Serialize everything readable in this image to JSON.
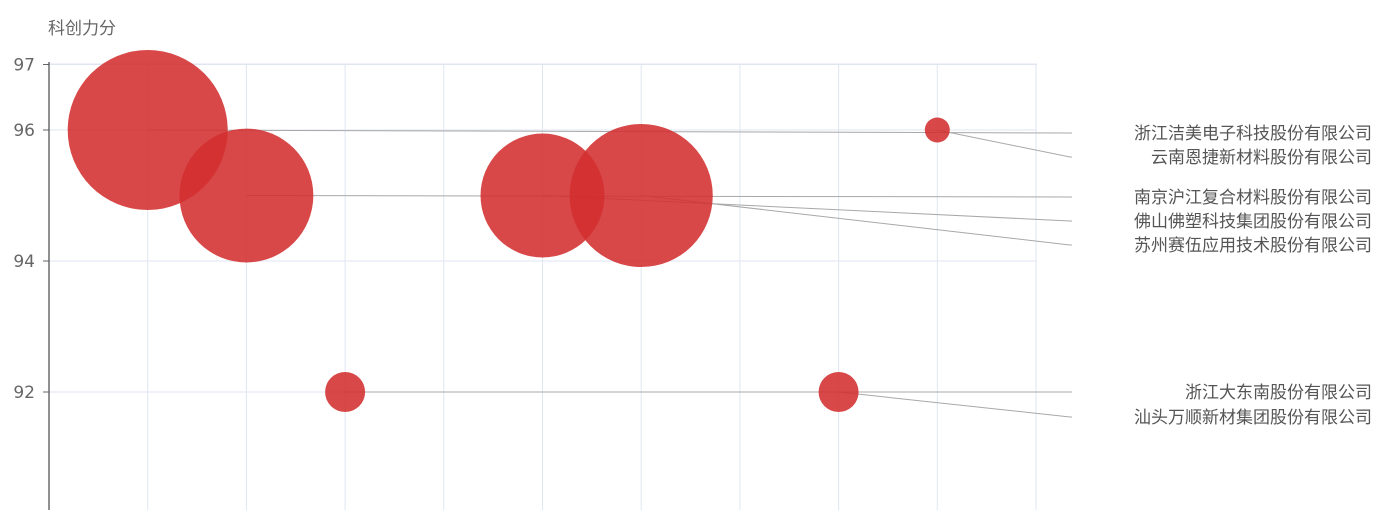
{
  "chart_data": {
    "type": "scatter",
    "ylabel": "科创力分",
    "ylim": [
      90,
      97
    ],
    "xlim": [
      0,
      10
    ],
    "y_ticks": [
      92,
      94,
      96,
      97
    ],
    "grid": true,
    "legend": "none",
    "color": "#d32f2f",
    "points": [
      {
        "name": "浙江洁美电子科技股份有限公司",
        "x": 1,
        "y": 96,
        "size": 10
      },
      {
        "name": "云南恩捷新材料股份有限公司",
        "x": 9,
        "y": 96,
        "size": 1
      },
      {
        "name": "南京沪江复合材料股份有限公司",
        "x": 2,
        "y": 95,
        "size": 7
      },
      {
        "name": "佛山佛塑科技集团股份有限公司",
        "x": 5,
        "y": 95,
        "size": 6
      },
      {
        "name": "苏州赛伍应用技术股份有限公司",
        "x": 6,
        "y": 95,
        "size": 8
      },
      {
        "name": "浙江大东南股份有限公司",
        "x": 3,
        "y": 92,
        "size": 2
      },
      {
        "name": "汕头万顺新材集团股份有限公司",
        "x": 8,
        "y": 92,
        "size": 2
      }
    ]
  }
}
